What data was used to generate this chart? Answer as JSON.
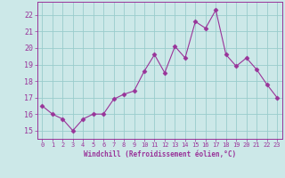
{
  "x": [
    0,
    1,
    2,
    3,
    4,
    5,
    6,
    7,
    8,
    9,
    10,
    11,
    12,
    13,
    14,
    15,
    16,
    17,
    18,
    19,
    20,
    21,
    22,
    23
  ],
  "y": [
    16.5,
    16.0,
    15.7,
    15.0,
    15.7,
    16.0,
    16.0,
    16.9,
    17.2,
    17.4,
    18.6,
    19.6,
    18.5,
    20.1,
    19.4,
    21.6,
    21.2,
    22.3,
    19.6,
    18.9,
    19.4,
    18.7,
    17.8,
    17.0
  ],
  "line_color": "#993399",
  "marker": "D",
  "marker_size": 2.5,
  "bg_color": "#cce8e8",
  "grid_color": "#99cccc",
  "xlabel": "Windchill (Refroidissement éolien,°C)",
  "xlabel_color": "#993399",
  "tick_color": "#993399",
  "xlim": [
    -0.5,
    23.5
  ],
  "ylim": [
    14.5,
    22.8
  ],
  "yticks": [
    15,
    16,
    17,
    18,
    19,
    20,
    21,
    22
  ],
  "xticks": [
    0,
    1,
    2,
    3,
    4,
    5,
    6,
    7,
    8,
    9,
    10,
    11,
    12,
    13,
    14,
    15,
    16,
    17,
    18,
    19,
    20,
    21,
    22,
    23
  ]
}
